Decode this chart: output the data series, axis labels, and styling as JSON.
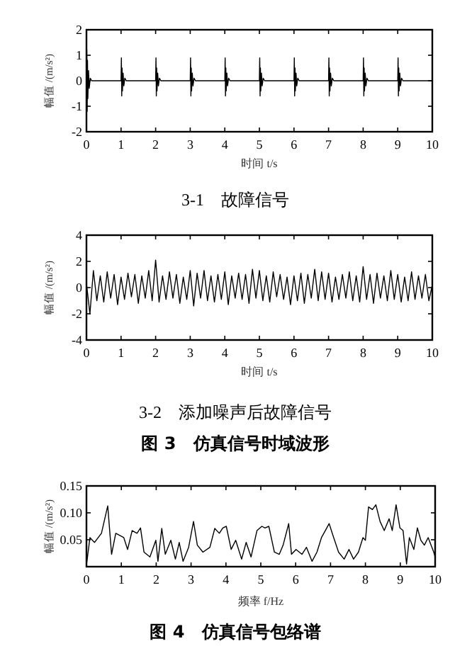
{
  "chart_data": [
    {
      "type": "line",
      "title": "3-1　故障信号",
      "xlabel": "时间 t/s",
      "ylabel": "幅值 /(m/s²)",
      "xlim": [
        0,
        10
      ],
      "ylim": [
        -2,
        2
      ],
      "xticks": [
        0,
        1,
        2,
        3,
        4,
        5,
        6,
        7,
        8,
        9,
        10
      ],
      "yticks": [
        -2,
        -1,
        0,
        1,
        2
      ],
      "grid": false,
      "marker": "none",
      "line_style": "solid",
      "series": [
        {
          "color": "#000000",
          "x": [
            0,
            0.01,
            0.02,
            0.03,
            0.04,
            0.06,
            0.08,
            0.11,
            0.15,
            1,
            1.01,
            1.02,
            1.03,
            1.04,
            1.06,
            1.08,
            1.11,
            1.15,
            2,
            2.01,
            2.02,
            2.03,
            2.04,
            2.06,
            2.08,
            2.11,
            2.15,
            3,
            3.01,
            3.02,
            3.03,
            3.04,
            3.06,
            3.08,
            3.11,
            3.15,
            4,
            4.01,
            4.02,
            4.03,
            4.04,
            4.06,
            4.08,
            4.11,
            4.15,
            5,
            5.01,
            5.02,
            5.03,
            5.04,
            5.06,
            5.08,
            5.11,
            5.15,
            6,
            6.01,
            6.02,
            6.03,
            6.04,
            6.06,
            6.08,
            6.11,
            6.15,
            7,
            7.01,
            7.02,
            7.03,
            7.04,
            7.06,
            7.08,
            7.11,
            7.15,
            8,
            8.01,
            8.02,
            8.03,
            8.04,
            8.06,
            8.08,
            8.11,
            8.15,
            9,
            9.01,
            9.02,
            9.03,
            9.04,
            9.06,
            9.08,
            9.11,
            9.15,
            10
          ],
          "values": [
            0,
            1.2,
            -1.2,
            0.8,
            -0.7,
            0.4,
            -0.3,
            0.1,
            0,
            0,
            0.9,
            -0.6,
            0.5,
            -0.4,
            0.3,
            -0.2,
            0.1,
            0,
            0,
            0.9,
            -0.6,
            0.5,
            -0.4,
            0.3,
            -0.2,
            0.1,
            0,
            0,
            0.9,
            -0.6,
            0.5,
            -0.4,
            0.3,
            -0.2,
            0.1,
            0,
            0,
            0.9,
            -0.6,
            0.5,
            -0.4,
            0.3,
            -0.2,
            0.1,
            0,
            0,
            0.9,
            -0.6,
            0.5,
            -0.4,
            0.3,
            -0.2,
            0.1,
            0,
            0,
            0.9,
            -0.6,
            0.5,
            -0.4,
            0.3,
            -0.2,
            0.1,
            0,
            0,
            0.9,
            -0.6,
            0.5,
            -0.4,
            0.3,
            -0.2,
            0.1,
            0,
            0,
            0.9,
            -0.6,
            0.5,
            -0.4,
            0.3,
            -0.2,
            0.1,
            0,
            0,
            0.9,
            -0.6,
            0.5,
            -0.4,
            0.3,
            -0.2,
            0.1,
            0,
            0
          ]
        }
      ]
    },
    {
      "type": "line",
      "title": "3-2　添加噪声后故障信号",
      "xlabel": "时间 t/s",
      "ylabel": "幅值 /(m/s²)",
      "annotations": [
        "图 3　仿真信号时域波形"
      ],
      "xlim": [
        0,
        10
      ],
      "ylim": [
        -4,
        4
      ],
      "xticks": [
        0,
        1,
        2,
        3,
        4,
        5,
        6,
        7,
        8,
        9,
        10
      ],
      "yticks": [
        -4,
        -2,
        0,
        2,
        4
      ],
      "grid": false,
      "marker": "none",
      "line_style": "solid",
      "series": [
        {
          "color": "#000000",
          "x": [
            0,
            0.1,
            0.2,
            0.3,
            0.4,
            0.5,
            0.6,
            0.7,
            0.8,
            0.9,
            1,
            1.1,
            1.2,
            1.3,
            1.4,
            1.5,
            1.6,
            1.7,
            1.8,
            1.9,
            2,
            2.1,
            2.2,
            2.3,
            2.4,
            2.5,
            2.6,
            2.7,
            2.8,
            2.9,
            3,
            3.1,
            3.2,
            3.3,
            3.4,
            3.5,
            3.6,
            3.7,
            3.8,
            3.9,
            4,
            4.1,
            4.2,
            4.3,
            4.4,
            4.5,
            4.6,
            4.7,
            4.8,
            4.9,
            5,
            5.1,
            5.2,
            5.3,
            5.4,
            5.5,
            5.6,
            5.7,
            5.8,
            5.9,
            6,
            6.1,
            6.2,
            6.3,
            6.4,
            6.5,
            6.6,
            6.7,
            6.8,
            6.9,
            7,
            7.1,
            7.2,
            7.3,
            7.4,
            7.5,
            7.6,
            7.7,
            7.8,
            7.9,
            8,
            8.1,
            8.2,
            8.3,
            8.4,
            8.5,
            8.6,
            8.7,
            8.8,
            8.9,
            9,
            9.1,
            9.2,
            9.3,
            9.4,
            9.5,
            9.6,
            9.7,
            9.8,
            9.9,
            10
          ],
          "values": [
            0.3,
            -2.0,
            1.3,
            -1.0,
            0.9,
            -1.1,
            1.2,
            -0.8,
            1.0,
            -1.3,
            0.8,
            -0.9,
            1.1,
            -0.7,
            1.0,
            -1.2,
            0.9,
            -0.8,
            1.3,
            -1.0,
            2.1,
            -1.1,
            0.9,
            -0.9,
            1.2,
            -0.8,
            1.0,
            -1.2,
            0.8,
            -0.9,
            1.3,
            -1.4,
            1.1,
            -0.8,
            1.3,
            -1.0,
            0.9,
            -1.1,
            1.0,
            -0.9,
            1.2,
            -1.3,
            0.9,
            -0.8,
            1.1,
            -0.9,
            1.0,
            -1.2,
            1.4,
            -0.8,
            1.3,
            -1.0,
            0.9,
            -1.1,
            1.2,
            -0.7,
            1.0,
            -0.9,
            0.8,
            -1.3,
            0.9,
            -1.0,
            1.1,
            -1.2,
            1.0,
            -0.8,
            1.4,
            -1.0,
            1.2,
            -0.9,
            1.1,
            -1.1,
            0.8,
            -0.9,
            1.0,
            -0.8,
            1.2,
            -1.0,
            0.9,
            -1.1,
            1.6,
            -0.9,
            1.0,
            -1.2,
            1.1,
            -0.8,
            0.9,
            -1.0,
            1.3,
            -0.9,
            1.0,
            -1.1,
            0.8,
            -1.0,
            1.2,
            -0.9,
            0.9,
            -0.8,
            1.0,
            -1.0,
            0.2
          ]
        }
      ]
    },
    {
      "type": "line",
      "title": "图 4　仿真信号包络谱",
      "xlabel": "频率 f/Hz",
      "ylabel": "幅值 /(m/s²)",
      "xlim": [
        0,
        10
      ],
      "ylim": [
        0,
        0.15
      ],
      "xticks": [
        0,
        1,
        2,
        3,
        4,
        5,
        6,
        7,
        8,
        9,
        10
      ],
      "yticks": [
        0.05,
        {
          "value": 0.1,
          "label": "0.10"
        },
        0.15
      ],
      "grid": false,
      "marker": "none",
      "line_style": "solid",
      "series": [
        {
          "color": "#000000",
          "x": [
            0,
            0.1,
            0.23,
            0.43,
            0.61,
            0.72,
            0.84,
            1.07,
            1.18,
            1.31,
            1.45,
            1.55,
            1.65,
            1.82,
            1.99,
            2.05,
            2.16,
            2.26,
            2.42,
            2.55,
            2.66,
            2.77,
            2.93,
            3.07,
            3.18,
            3.34,
            3.54,
            3.68,
            3.81,
            3.91,
            4.01,
            4.15,
            4.28,
            4.45,
            4.58,
            4.72,
            4.89,
            5.03,
            5.12,
            5.23,
            5.39,
            5.53,
            5.64,
            5.8,
            5.88,
            6.01,
            6.18,
            6.31,
            6.47,
            6.61,
            6.74,
            6.85,
            6.96,
            7.09,
            7.23,
            7.39,
            7.53,
            7.66,
            7.8,
            7.93,
            8.0,
            8.09,
            8.2,
            8.3,
            8.42,
            8.54,
            8.68,
            8.77,
            8.88,
            8.99,
            9.08,
            9.18,
            9.26,
            9.39,
            9.49,
            9.59,
            9.69,
            9.8,
            9.96,
            10
          ],
          "values": [
            0.003,
            0.054,
            0.045,
            0.062,
            0.113,
            0.023,
            0.062,
            0.054,
            0.032,
            0.067,
            0.062,
            0.072,
            0.027,
            0.018,
            0.049,
            0.01,
            0.071,
            0.023,
            0.049,
            0.014,
            0.045,
            0.01,
            0.036,
            0.084,
            0.04,
            0.027,
            0.036,
            0.071,
            0.062,
            0.072,
            0.075,
            0.032,
            0.049,
            0.014,
            0.045,
            0.018,
            0.067,
            0.075,
            0.072,
            0.075,
            0.027,
            0.023,
            0.04,
            0.08,
            0.023,
            0.032,
            0.023,
            0.036,
            0.01,
            0.027,
            0.054,
            0.067,
            0.08,
            0.054,
            0.027,
            0.014,
            0.032,
            0.014,
            0.027,
            0.054,
            0.049,
            0.111,
            0.106,
            0.115,
            0.084,
            0.067,
            0.089,
            0.067,
            0.115,
            0.072,
            0.067,
            0.005,
            0.054,
            0.032,
            0.072,
            0.049,
            0.04,
            0.054,
            0.027,
            0.018
          ]
        }
      ]
    }
  ]
}
